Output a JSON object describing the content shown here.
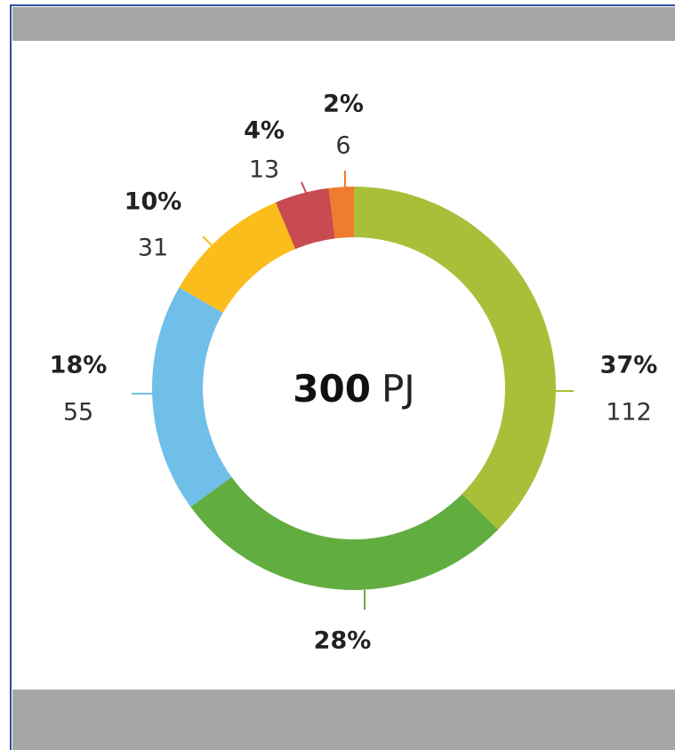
{
  "chart_data": {
    "type": "donut",
    "center_value": 300,
    "center_unit": "PJ",
    "values": [
      112,
      83,
      55,
      31,
      13,
      6
    ],
    "percent_labels": [
      "37%",
      "28%",
      "18%",
      "10%",
      "4%",
      "2%"
    ],
    "value_labels": [
      "112",
      null,
      "55",
      "31",
      "13",
      "6"
    ],
    "colors": [
      "#a9bf3a",
      "#62ad40",
      "#70bfe9",
      "#fbbd1b",
      "#c74b4f",
      "#f07c2e"
    ]
  }
}
